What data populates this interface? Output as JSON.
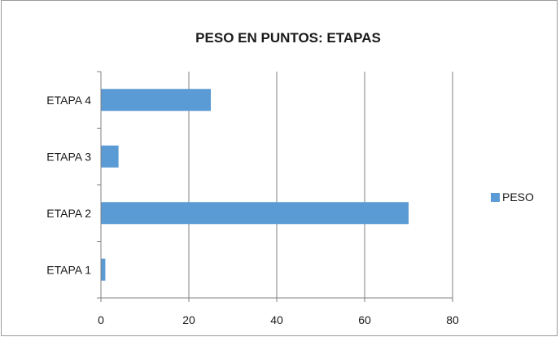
{
  "chart_data": {
    "type": "bar",
    "orientation": "horizontal",
    "title": "PESO EN PUNTOS: ETAPAS",
    "categories": [
      "ETAPA 1",
      "ETAPA 2",
      "ETAPA 3",
      "ETAPA 4"
    ],
    "series": [
      {
        "name": "PESO",
        "values": [
          1,
          70,
          4,
          25
        ],
        "color": "#5B9BD5"
      }
    ],
    "xlim": [
      0,
      80
    ],
    "xticks": [
      0,
      20,
      40,
      60,
      80
    ],
    "grid": "vertical",
    "legend_position": "right",
    "gridline_color": "#808080",
    "axis_color": "#808080"
  }
}
